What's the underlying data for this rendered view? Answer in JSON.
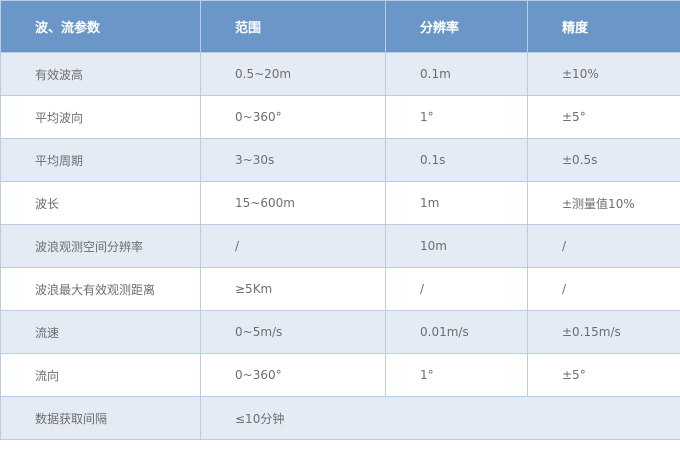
{
  "headers": [
    "波、流参数",
    "范围",
    "分辨率",
    "精度"
  ],
  "rows": [
    [
      "有效波高",
      "0.5~20m",
      "0.1m",
      "±10%"
    ],
    [
      "平均波向",
      "0~360°",
      "1°",
      "±5°"
    ],
    [
      "平均周期",
      "3~30s",
      "0.1s",
      "±0.5s"
    ],
    [
      "波长",
      "15~600m",
      "1m",
      "±测量值10%"
    ],
    [
      "波浪观测空间分辨率",
      "/",
      "10m",
      "/"
    ],
    [
      "波浪最大有效观测距离",
      "≥5Km",
      "/",
      "/"
    ],
    [
      "流速",
      "0~5m/s",
      "0.01m/s",
      "±0.15m/s"
    ],
    [
      "流向",
      "0~360°",
      "1°",
      "±5°"
    ]
  ],
  "last_row": [
    "数据获取间隔",
    "≤10分钟"
  ],
  "colors": {
    "header_bg": "#6b96c8",
    "row_alt_bg": "#e4ebf5",
    "border": "#b9cde5"
  }
}
